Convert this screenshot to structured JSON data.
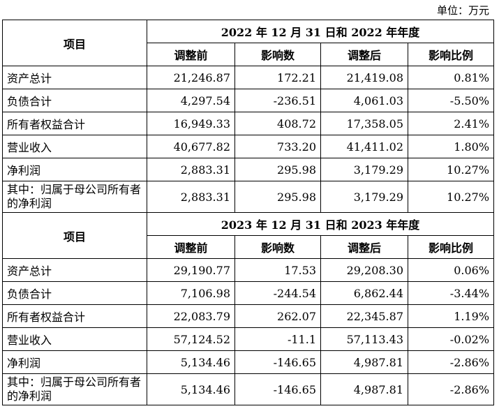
{
  "unit_label": "单位：万元",
  "columns": [
    "调整前",
    "影响数",
    "调整后",
    "影响比例"
  ],
  "item_header": "项目",
  "sections": [
    {
      "period": "2022 年 12 月 31 日和 2022 年年度",
      "rows": [
        {
          "label": "资产总计",
          "values": [
            "21,246.87",
            "172.21",
            "21,419.08",
            "0.81%"
          ]
        },
        {
          "label": "负债合计",
          "values": [
            "4,297.54",
            "-236.51",
            "4,061.03",
            "-5.50%"
          ]
        },
        {
          "label": "所有者权益合计",
          "values": [
            "16,949.33",
            "408.72",
            "17,358.05",
            "2.41%"
          ]
        },
        {
          "label": "营业收入",
          "values": [
            "40,677.82",
            "733.20",
            "41,411.02",
            "1.80%"
          ]
        },
        {
          "label": "净利润",
          "values": [
            "2,883.31",
            "295.98",
            "3,179.29",
            "10.27%"
          ]
        },
        {
          "label": "其中：归属于母公司所有者的净利润",
          "values": [
            "2,883.31",
            "295.98",
            "3,179.29",
            "10.27%"
          ]
        }
      ]
    },
    {
      "period": "2023 年 12 月 31 日和 2023 年年度",
      "rows": [
        {
          "label": "资产总计",
          "values": [
            "29,190.77",
            "17.53",
            "29,208.30",
            "0.06%"
          ]
        },
        {
          "label": "负债合计",
          "values": [
            "7,106.98",
            "-244.54",
            "6,862.44",
            "-3.44%"
          ]
        },
        {
          "label": "所有者权益合计",
          "values": [
            "22,083.79",
            "262.07",
            "22,345.87",
            "1.19%"
          ]
        },
        {
          "label": "营业收入",
          "values": [
            "57,124.52",
            "-11.1",
            "57,113.43",
            "-0.02%"
          ]
        },
        {
          "label": "净利润",
          "values": [
            "5,134.46",
            "-146.65",
            "4,987.81",
            "-2.86%"
          ]
        },
        {
          "label": "其中：归属于母公司所有者的净利润",
          "values": [
            "5,134.46",
            "-146.65",
            "4,987.81",
            "-2.86%"
          ]
        }
      ]
    }
  ]
}
